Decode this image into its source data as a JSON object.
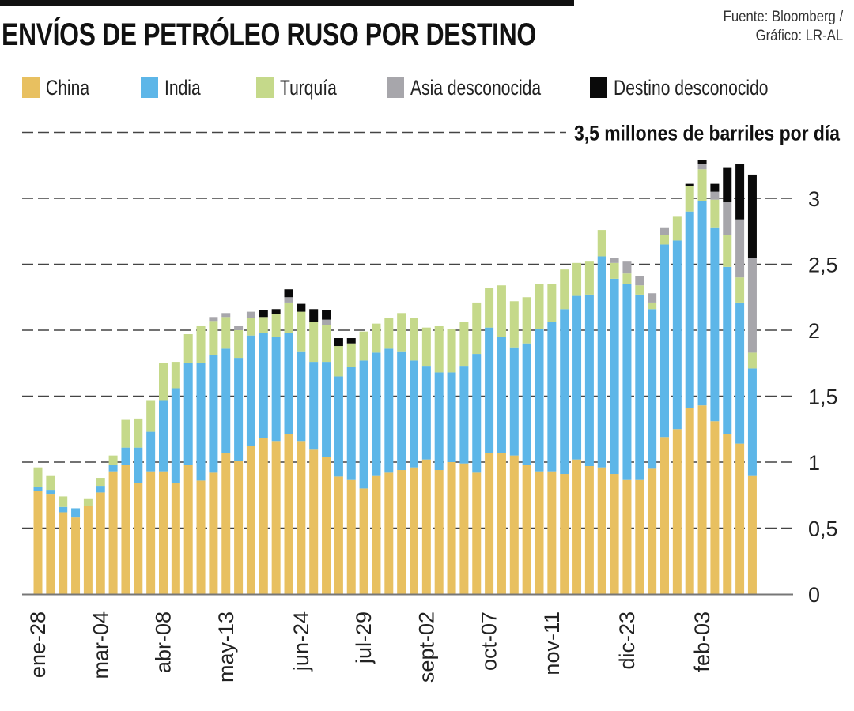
{
  "header": {
    "title": "ENVÍOS DE PETRÓLEO RUSO POR DESTINO",
    "source_line1": "Fuente: Bloomberg /",
    "source_line2": "Gráfico: LR-AL"
  },
  "chart_data": {
    "type": "bar",
    "stacked": true,
    "title": "ENVÍOS DE PETRÓLEO RUSO POR DESTINO",
    "unit_annotation": "3,5 millones de barriles por día",
    "xlabel": "",
    "ylabel": "millones de barriles por día",
    "ylim": [
      0,
      3.5
    ],
    "yticks": [
      0,
      0.5,
      1,
      1.5,
      2,
      2.5,
      3
    ],
    "ytick_labels": [
      "0",
      "0,5",
      "1",
      "1,5",
      "2",
      "2,5",
      "3"
    ],
    "grid": true,
    "legend_position": "top-left",
    "x_tick_labels": [
      {
        "index": 0,
        "label": "ene-28"
      },
      {
        "index": 5,
        "label": "mar-04"
      },
      {
        "index": 10,
        "label": "abr-08"
      },
      {
        "index": 15,
        "label": "may-13"
      },
      {
        "index": 21,
        "label": "jun-24"
      },
      {
        "index": 26,
        "label": "jul-29"
      },
      {
        "index": 31,
        "label": "sept-02"
      },
      {
        "index": 36,
        "label": "oct-07"
      },
      {
        "index": 41,
        "label": "nov-11"
      },
      {
        "index": 47,
        "label": "dic-23"
      },
      {
        "index": 53,
        "label": "feb-03"
      }
    ],
    "series": [
      {
        "name": "China",
        "color": "#E8C060",
        "values": [
          0.78,
          0.76,
          0.62,
          0.58,
          0.67,
          0.77,
          0.93,
          0.98,
          0.84,
          0.93,
          0.93,
          0.84,
          0.98,
          0.86,
          0.92,
          1.07,
          1.01,
          1.12,
          1.18,
          1.16,
          1.21,
          1.16,
          1.1,
          1.04,
          0.89,
          0.87,
          0.8,
          0.9,
          0.92,
          0.94,
          0.96,
          1.02,
          0.94,
          1.0,
          0.99,
          0.92,
          1.07,
          1.07,
          1.05,
          0.98,
          0.93,
          0.93,
          0.91,
          1.02,
          0.97,
          0.96,
          0.91,
          0.87,
          0.87,
          0.95,
          1.19,
          1.25,
          1.41,
          1.43,
          1.31,
          1.21,
          1.14,
          0.9
        ]
      },
      {
        "name": "India",
        "color": "#5DB6E8",
        "values": [
          0.03,
          0.03,
          0.04,
          0.07,
          0.0,
          0.05,
          0.05,
          0.13,
          0.27,
          0.3,
          0.54,
          0.72,
          0.77,
          0.89,
          0.89,
          0.79,
          0.78,
          0.84,
          0.8,
          0.79,
          0.77,
          0.68,
          0.66,
          0.72,
          0.76,
          0.85,
          0.97,
          0.93,
          0.94,
          0.9,
          0.81,
          0.71,
          0.74,
          0.68,
          0.74,
          0.9,
          0.95,
          0.88,
          0.82,
          0.92,
          1.08,
          1.13,
          1.25,
          1.24,
          1.3,
          1.6,
          1.48,
          1.48,
          1.4,
          1.21,
          1.46,
          1.43,
          1.49,
          1.55,
          1.47,
          1.27,
          1.07,
          0.81
        ]
      },
      {
        "name": "Turquía",
        "color": "#C5D98A",
        "values": [
          0.15,
          0.11,
          0.08,
          0.0,
          0.05,
          0.06,
          0.07,
          0.21,
          0.22,
          0.24,
          0.28,
          0.2,
          0.22,
          0.28,
          0.26,
          0.24,
          0.21,
          0.13,
          0.12,
          0.17,
          0.23,
          0.3,
          0.3,
          0.28,
          0.23,
          0.18,
          0.22,
          0.22,
          0.23,
          0.29,
          0.32,
          0.29,
          0.35,
          0.33,
          0.33,
          0.39,
          0.3,
          0.39,
          0.35,
          0.35,
          0.34,
          0.29,
          0.3,
          0.25,
          0.25,
          0.2,
          0.12,
          0.08,
          0.07,
          0.05,
          0.07,
          0.18,
          0.19,
          0.24,
          0.21,
          0.24,
          0.19,
          0.12
        ]
      },
      {
        "name": "Asia desconocida",
        "color": "#A7A6AB",
        "values": [
          0,
          0,
          0,
          0,
          0,
          0,
          0,
          0,
          0,
          0,
          0,
          0,
          0,
          0,
          0.03,
          0.03,
          0.03,
          0.05,
          0,
          0,
          0.04,
          0,
          0,
          0.04,
          0,
          0,
          0,
          0,
          0,
          0,
          0,
          0,
          0,
          0,
          0,
          0,
          0,
          0,
          0,
          0,
          0,
          0,
          0,
          0,
          0,
          0,
          0.04,
          0.09,
          0.07,
          0.07,
          0.06,
          0,
          0,
          0.04,
          0.06,
          0.25,
          0.44,
          0.72
        ]
      },
      {
        "name": "Destino desconocido",
        "color": "#0A0A0A",
        "values": [
          0,
          0,
          0,
          0,
          0,
          0,
          0,
          0,
          0,
          0,
          0,
          0,
          0,
          0,
          0,
          0,
          0,
          0,
          0.05,
          0.04,
          0.06,
          0.06,
          0.1,
          0.07,
          0.06,
          0.04,
          0,
          0,
          0,
          0,
          0,
          0,
          0,
          0,
          0,
          0,
          0,
          0,
          0,
          0,
          0,
          0,
          0,
          0,
          0,
          0,
          0,
          0,
          0,
          0,
          0,
          0,
          0.02,
          0.03,
          0.06,
          0.26,
          0.42,
          0.63
        ]
      }
    ]
  }
}
